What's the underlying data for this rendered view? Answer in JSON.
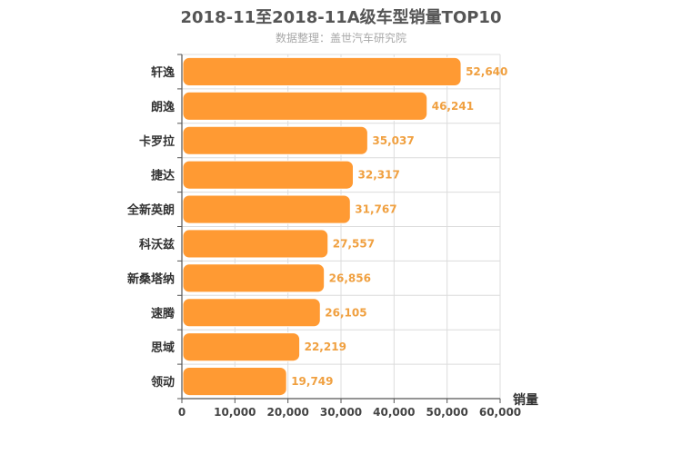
{
  "title": "2018-11至2018-11A级车型销量TOP10",
  "subtitle": "数据整理：盖世汽车研究院",
  "chart_data": {
    "type": "bar",
    "orientation": "horizontal",
    "title": "2018-11至2018-11A级车型销量TOP10",
    "subtitle": "数据整理：盖世汽车研究院",
    "xlabel": "销量",
    "ylabel": "",
    "xlim": [
      0,
      60000
    ],
    "xticks": [
      0,
      10000,
      20000,
      30000,
      40000,
      50000,
      60000
    ],
    "xtick_labels": [
      "0",
      "10,000",
      "20,000",
      "30,000",
      "40,000",
      "50,000",
      "60,000"
    ],
    "grid": true,
    "bar_color": "#ff9a33",
    "value_label_color": "#f0a040",
    "categories": [
      "轩逸",
      "朗逸",
      "卡罗拉",
      "捷达",
      "全新英朗",
      "科沃兹",
      "新桑塔纳",
      "速腾",
      "思域",
      "领动"
    ],
    "values": [
      52640,
      46241,
      35037,
      32317,
      31767,
      27557,
      26856,
      26105,
      22219,
      19749
    ],
    "value_labels": [
      "52,640",
      "46,241",
      "35,037",
      "32,317",
      "31,767",
      "27,557",
      "26,856",
      "26,105",
      "22,219",
      "19,749"
    ]
  }
}
